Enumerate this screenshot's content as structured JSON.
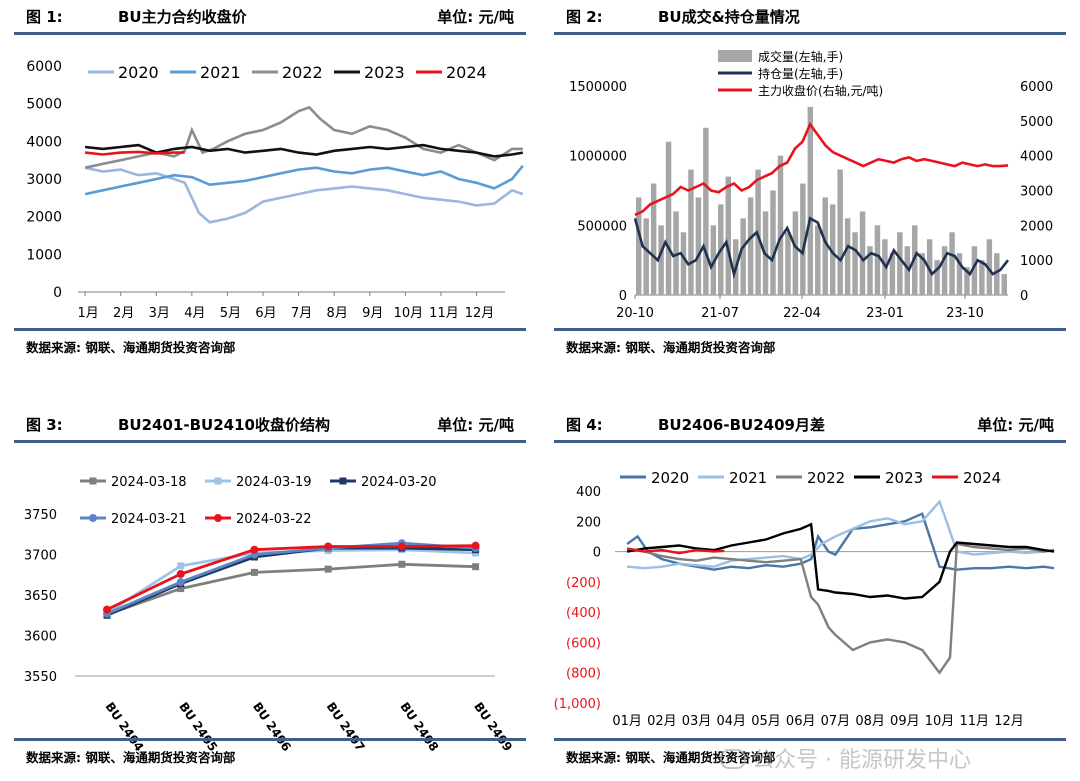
{
  "panels": [
    {
      "fig": "图 1:",
      "title": "BU主力合约收盘价",
      "unit": "单位: 元/吨",
      "source": "数据来源: 钢联、海通期货投资咨询部"
    },
    {
      "fig": "图 2:",
      "title": "BU成交&持仓量情况",
      "unit": "",
      "source": "数据来源: 钢联、海通期货投资咨询部"
    },
    {
      "fig": "图 3:",
      "title": "BU2401-BU2410收盘价结构",
      "unit": "单位: 元/吨",
      "source": "数据来源: 钢联、海通期货投资咨询部"
    },
    {
      "fig": "图 4:",
      "title": "BU2406-BU2409月差",
      "unit": "单位: 元/吨",
      "source": "数据来源: 钢联、海通期货投资咨询部"
    }
  ],
  "watermark": "公众号 · 能源研发中心",
  "chart_data": [
    {
      "type": "line",
      "x_ticks": [
        "1月",
        "2月",
        "3月",
        "4月",
        "5月",
        "6月",
        "7月",
        "8月",
        "9月",
        "10月",
        "11月",
        "12月"
      ],
      "y_ticks": [
        "0",
        "1000",
        "2000",
        "3000",
        "4000",
        "5000",
        "6000"
      ],
      "ylim": [
        0,
        6000
      ],
      "legend": "top",
      "series": [
        {
          "name": "2020",
          "color": "#9bb7dc",
          "x": [
            0,
            0.5,
            1,
            1.5,
            2,
            2.5,
            2.8,
            3.2,
            3.5,
            4,
            4.5,
            5,
            5.5,
            6,
            6.5,
            7,
            7.5,
            8,
            8.5,
            9,
            9.5,
            10,
            10.5,
            11,
            11.5,
            12,
            12.3
          ],
          "values": [
            3300,
            3200,
            3250,
            3100,
            3150,
            3000,
            2900,
            2100,
            1850,
            1950,
            2100,
            2400,
            2500,
            2600,
            2700,
            2750,
            2800,
            2750,
            2700,
            2600,
            2500,
            2450,
            2400,
            2300,
            2350,
            2700,
            2600
          ]
        },
        {
          "name": "2021",
          "color": "#5b9bd5",
          "x": [
            0,
            0.5,
            1,
            1.5,
            2,
            2.5,
            3,
            3.5,
            4,
            4.5,
            5,
            5.5,
            6,
            6.5,
            7,
            7.5,
            8,
            8.5,
            9,
            9.5,
            10,
            10.5,
            11,
            11.5,
            12,
            12.3
          ],
          "values": [
            2600,
            2700,
            2800,
            2900,
            3000,
            3100,
            3050,
            2850,
            2900,
            2950,
            3050,
            3150,
            3250,
            3300,
            3200,
            3150,
            3250,
            3300,
            3200,
            3100,
            3200,
            3000,
            2900,
            2750,
            3000,
            3350
          ]
        },
        {
          "name": "2022",
          "color": "#8c8c8c",
          "x": [
            0,
            0.5,
            1,
            1.5,
            2,
            2.5,
            2.8,
            3,
            3.3,
            3.6,
            4,
            4.5,
            5,
            5.5,
            6,
            6.3,
            6.6,
            7,
            7.5,
            8,
            8.5,
            9,
            9.5,
            10,
            10.5,
            11,
            11.5,
            12,
            12.3
          ],
          "values": [
            3300,
            3400,
            3500,
            3600,
            3700,
            3600,
            3750,
            4300,
            3700,
            3800,
            4000,
            4200,
            4300,
            4500,
            4800,
            4900,
            4600,
            4300,
            4200,
            4400,
            4300,
            4100,
            3800,
            3700,
            3900,
            3700,
            3500,
            3800,
            3800
          ]
        },
        {
          "name": "2023",
          "color": "#111111",
          "x": [
            0,
            0.5,
            1,
            1.5,
            2,
            2.5,
            3,
            3.5,
            4,
            4.5,
            5,
            5.5,
            6,
            6.5,
            7,
            7.5,
            8,
            8.5,
            9,
            9.5,
            10,
            10.5,
            11,
            11.5,
            12,
            12.3
          ],
          "values": [
            3850,
            3800,
            3850,
            3900,
            3700,
            3800,
            3850,
            3750,
            3800,
            3700,
            3750,
            3800,
            3700,
            3650,
            3750,
            3800,
            3850,
            3800,
            3850,
            3900,
            3800,
            3750,
            3700,
            3600,
            3650,
            3700
          ]
        },
        {
          "name": "2024",
          "color": "#e8141c",
          "x": [
            0,
            0.5,
            1,
            1.5,
            2,
            2.5,
            2.8
          ],
          "values": [
            3700,
            3650,
            3700,
            3720,
            3680,
            3700,
            3700
          ]
        }
      ]
    },
    {
      "type": "bar+line",
      "x_ticks": [
        "20-10",
        "21-07",
        "22-04",
        "23-01",
        "23-10"
      ],
      "y_left_ticks": [
        "0",
        "500000",
        "1000000",
        "1500000"
      ],
      "y_right_ticks": [
        "0",
        "1000",
        "2000",
        "3000",
        "4000",
        "5000",
        "6000"
      ],
      "ylim_left": [
        0,
        1500000
      ],
      "ylim_right": [
        0,
        6000
      ],
      "legend": "top",
      "series": [
        {
          "name": "成交量(左轴,手)",
          "type": "bar",
          "axis": "left",
          "color": "#a6a6a6",
          "values": [
            700000,
            550000,
            800000,
            500000,
            1100000,
            600000,
            450000,
            900000,
            700000,
            1200000,
            500000,
            650000,
            850000,
            400000,
            550000,
            700000,
            900000,
            600000,
            750000,
            1000000,
            450000,
            600000,
            800000,
            1350000,
            500000,
            700000,
            650000,
            900000,
            550000,
            450000,
            600000,
            350000,
            500000,
            400000,
            300000,
            450000,
            350000,
            500000,
            300000,
            400000,
            250000,
            350000,
            450000,
            300000,
            200000,
            350000,
            250000,
            400000,
            300000,
            150000
          ]
        },
        {
          "name": "持仓量(左轴,手)",
          "type": "line",
          "axis": "left",
          "color": "#1f3350",
          "values": [
            550000,
            350000,
            300000,
            250000,
            380000,
            280000,
            300000,
            220000,
            250000,
            350000,
            200000,
            300000,
            380000,
            150000,
            330000,
            400000,
            450000,
            300000,
            250000,
            400000,
            480000,
            350000,
            300000,
            550000,
            520000,
            380000,
            300000,
            250000,
            350000,
            320000,
            250000,
            300000,
            280000,
            200000,
            320000,
            250000,
            180000,
            300000,
            250000,
            150000,
            200000,
            300000,
            280000,
            200000,
            150000,
            250000,
            220000,
            150000,
            180000,
            250000
          ]
        },
        {
          "name": "主力收盘价(右轴,元/吨)",
          "type": "line",
          "axis": "right",
          "color": "#e8141c",
          "values": [
            2300,
            2400,
            2600,
            2700,
            2800,
            2900,
            3100,
            3000,
            3100,
            3200,
            3000,
            2950,
            3100,
            3200,
            3000,
            3100,
            3300,
            3400,
            3500,
            3700,
            3800,
            4200,
            4400,
            4900,
            4600,
            4300,
            4100,
            4000,
            3900,
            3800,
            3700,
            3800,
            3900,
            3850,
            3800,
            3900,
            3950,
            3850,
            3900,
            3850,
            3800,
            3750,
            3700,
            3800,
            3750,
            3700,
            3750,
            3700,
            3700,
            3720
          ]
        }
      ]
    },
    {
      "type": "line",
      "categories": [
        "BU 2404",
        "BU 2405",
        "BU 2406",
        "BU 2407",
        "BU 2408",
        "BU 2409"
      ],
      "y_ticks": [
        "3550",
        "3600",
        "3650",
        "3700",
        "3750"
      ],
      "ylim": [
        3550,
        3760
      ],
      "legend": "top",
      "series": [
        {
          "name": "2024-03-18",
          "color": "#7f7f7f",
          "marker": "square",
          "values": [
            3626,
            3658,
            3678,
            3682,
            3688,
            3685
          ]
        },
        {
          "name": "2024-03-19",
          "color": "#9dc3e6",
          "marker": "square",
          "values": [
            3628,
            3686,
            3702,
            3705,
            3706,
            3702
          ]
        },
        {
          "name": "2024-03-20",
          "color": "#1f3864",
          "marker": "square",
          "values": [
            3625,
            3664,
            3697,
            3708,
            3708,
            3706
          ]
        },
        {
          "name": "2024-03-21",
          "color": "#5b86c5",
          "marker": "circle",
          "values": [
            3627,
            3666,
            3700,
            3708,
            3714,
            3708
          ]
        },
        {
          "name": "2024-03-22",
          "color": "#e8141c",
          "marker": "circle",
          "values": [
            3632,
            3676,
            3706,
            3710,
            3710,
            3711
          ]
        }
      ]
    },
    {
      "type": "line",
      "x_ticks": [
        "01月",
        "02月",
        "03月",
        "04月",
        "05月",
        "06月",
        "07月",
        "08月",
        "09月",
        "10月",
        "11月",
        "12月"
      ],
      "y_ticks": [
        "400",
        "200",
        "0",
        "(200)",
        "(400)",
        "(600)",
        "(800)",
        "(1,000)"
      ],
      "ylim": [
        -1000,
        400
      ],
      "legend": "top",
      "series": [
        {
          "name": "2020",
          "color": "#4a76a8",
          "x": [
            0,
            0.3,
            0.6,
            1,
            1.5,
            2,
            2.5,
            3,
            3.5,
            4,
            4.5,
            5,
            5.3,
            5.5,
            5.8,
            6,
            6.5,
            7,
            7.5,
            8,
            8.5,
            9,
            9.5,
            10,
            10.5,
            11,
            11.5,
            12,
            12.3
          ],
          "values": [
            50,
            100,
            0,
            -50,
            -80,
            -100,
            -120,
            -100,
            -110,
            -90,
            -100,
            -80,
            -50,
            100,
            0,
            -20,
            150,
            160,
            180,
            200,
            250,
            -100,
            -120,
            -110,
            -110,
            -100,
            -110,
            -100,
            -110
          ]
        },
        {
          "name": "2021",
          "color": "#9bbfe3",
          "x": [
            0,
            0.5,
            1,
            1.5,
            2,
            2.5,
            3,
            3.5,
            4,
            4.5,
            5,
            5.3,
            5.6,
            6,
            6.5,
            7,
            7.5,
            8,
            8.5,
            9,
            9.2,
            9.5,
            10,
            10.5,
            11,
            11.5,
            12,
            12.3
          ],
          "values": [
            -100,
            -110,
            -100,
            -80,
            -90,
            -100,
            -60,
            -50,
            -40,
            -30,
            -50,
            -20,
            50,
            100,
            150,
            200,
            220,
            180,
            200,
            330,
            200,
            0,
            -20,
            -10,
            0,
            -10,
            0,
            10
          ]
        },
        {
          "name": "2022",
          "color": "#7f7f7f",
          "x": [
            0,
            0.5,
            1,
            1.5,
            2,
            2.5,
            3,
            3.5,
            4,
            4.5,
            5,
            5.3,
            5.5,
            5.8,
            6,
            6.5,
            7,
            7.5,
            8,
            8.5,
            9,
            9.3,
            9.5,
            10,
            10.5,
            11,
            11.5,
            12,
            12.3
          ],
          "values": [
            20,
            0,
            -30,
            -50,
            -60,
            -40,
            -50,
            -60,
            -70,
            -60,
            -50,
            -300,
            -350,
            -500,
            -550,
            -650,
            -600,
            -580,
            -600,
            -650,
            -800,
            -700,
            50,
            30,
            20,
            10,
            20,
            0,
            10
          ]
        },
        {
          "name": "2023",
          "color": "#000000",
          "x": [
            0,
            0.5,
            1,
            1.5,
            2,
            2.5,
            3,
            3.5,
            4,
            4.5,
            5,
            5.3,
            5.5,
            5.8,
            6,
            6.5,
            7,
            7.5,
            8,
            8.5,
            9,
            9.3,
            9.5,
            10,
            10.5,
            11,
            11.5,
            12,
            12.3
          ],
          "values": [
            0,
            20,
            30,
            40,
            20,
            10,
            40,
            60,
            80,
            120,
            150,
            180,
            -250,
            -260,
            -270,
            -280,
            -300,
            -290,
            -310,
            -300,
            -200,
            0,
            60,
            50,
            40,
            30,
            30,
            10,
            0
          ]
        },
        {
          "name": "2024",
          "color": "#e8141c",
          "x": [
            0,
            0.5,
            1,
            1.5,
            2,
            2.5,
            2.8
          ],
          "values": [
            20,
            0,
            10,
            -10,
            10,
            0,
            5
          ]
        }
      ]
    }
  ]
}
